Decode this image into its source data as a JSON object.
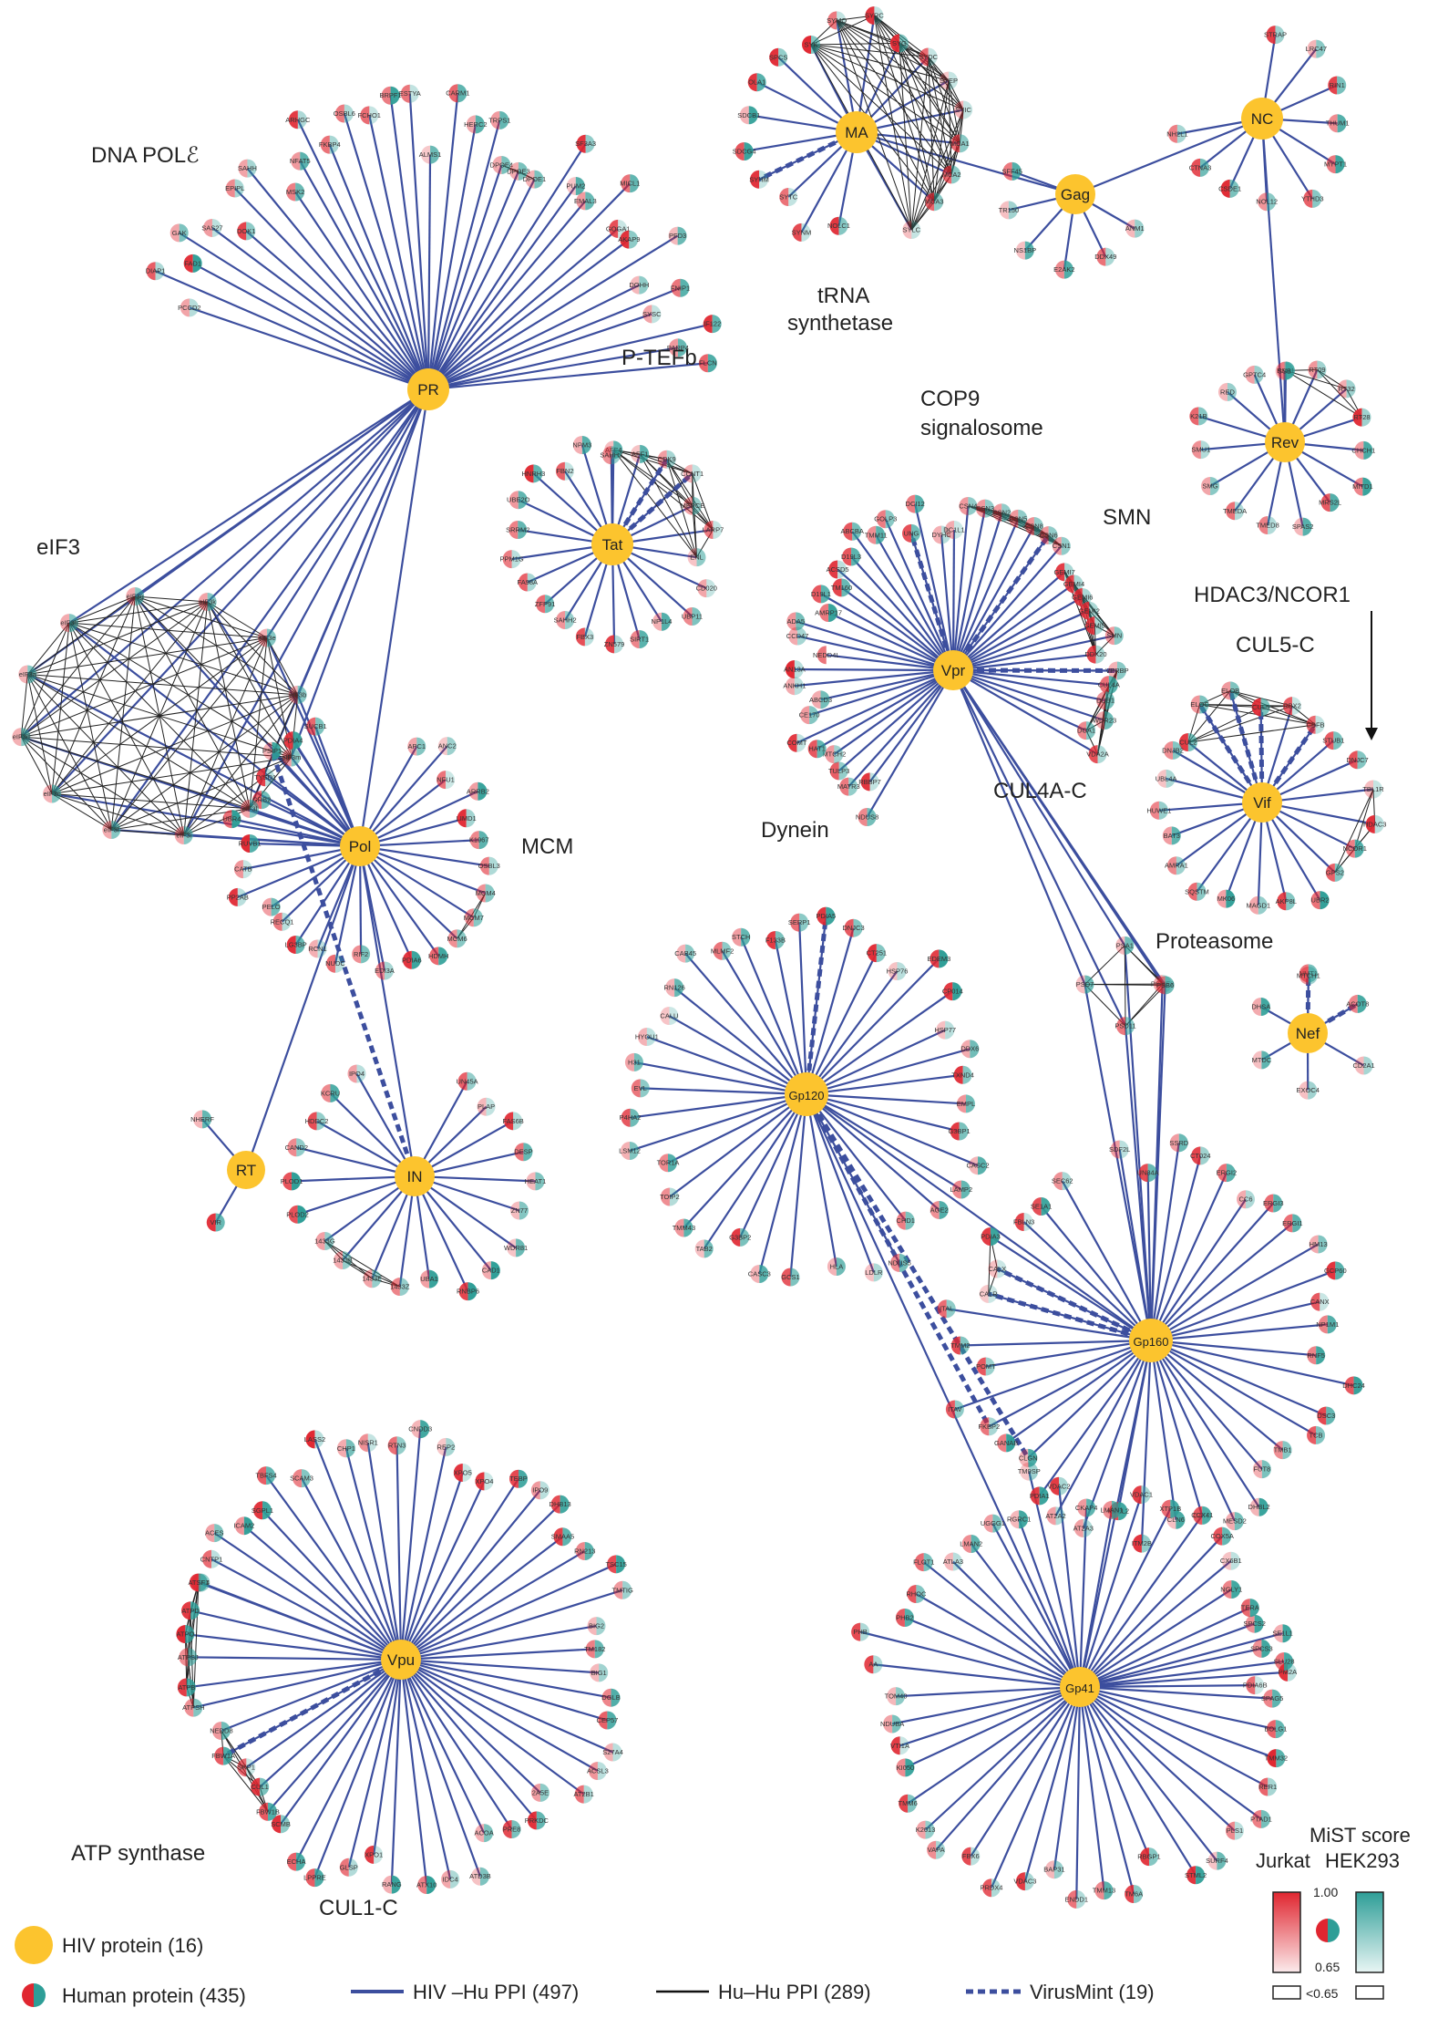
{
  "colors": {
    "hiv_node": "#FCC42E",
    "hiv_edge": "#3C4E9E",
    "hu_edge": "#222222",
    "virusmint_edge": "#3C4E9E",
    "jurkat_red": "#E02630",
    "hek_teal": "#2E9E97",
    "node_border": "#ffffff"
  },
  "hiv_nodes": [
    {
      "id": "PR",
      "label": "PR"
    },
    {
      "id": "Pol",
      "label": "Pol"
    },
    {
      "id": "RT",
      "label": "RT"
    },
    {
      "id": "IN",
      "label": "IN"
    },
    {
      "id": "MA",
      "label": "MA"
    },
    {
      "id": "Gag",
      "label": "Gag"
    },
    {
      "id": "NC",
      "label": "NC"
    },
    {
      "id": "Rev",
      "label": "Rev"
    },
    {
      "id": "Tat",
      "label": "Tat"
    },
    {
      "id": "Vpr",
      "label": "Vpr"
    },
    {
      "id": "Vif",
      "label": "Vif"
    },
    {
      "id": "Nef",
      "label": "Nef"
    },
    {
      "id": "Gp120",
      "label": "Gp120"
    },
    {
      "id": "Gp160",
      "label": "Gp160"
    },
    {
      "id": "Gp41",
      "label": "Gp41"
    },
    {
      "id": "Vpu",
      "label": "Vpu"
    }
  ],
  "clusters": [
    {
      "id": "dna-pol",
      "label": "DNA POLℰ"
    },
    {
      "id": "eif3",
      "label": "eIF3"
    },
    {
      "id": "mcm",
      "label": "MCM"
    },
    {
      "id": "ptefb",
      "label": "P-TEFb"
    },
    {
      "id": "trna1",
      "label": "tRNA"
    },
    {
      "id": "trna2",
      "label": "synthetase"
    },
    {
      "id": "cop9a",
      "label": "COP9"
    },
    {
      "id": "cop9b",
      "label": "signalosome"
    },
    {
      "id": "smn",
      "label": "SMN"
    },
    {
      "id": "hdac",
      "label": "HDAC3/NCOR1"
    },
    {
      "id": "cul5",
      "label": "CUL5-C"
    },
    {
      "id": "cul4a",
      "label": "CUL4A-C"
    },
    {
      "id": "dynein",
      "label": "Dynein"
    },
    {
      "id": "proteasome",
      "label": "Proteasome"
    },
    {
      "id": "atp",
      "label": "ATP synthase"
    },
    {
      "id": "cul1",
      "label": "CUL1-C"
    }
  ],
  "human_proteins": {
    "PR": [
      "PCCD2",
      "DIAP1",
      "FAD1",
      "GAK",
      "SAS27",
      "DOK1",
      "EPIPL",
      "SAHH",
      "MSK2",
      "NFAT5",
      "ARHGC",
      "FKBP4",
      "OSBL6",
      "FCHO1",
      "BRPF1",
      "ESTYA",
      "ALMS1",
      "CARM1",
      "HERC2",
      "TRPS1",
      "DPOE4",
      "DPOE3",
      "DPOE1",
      "SF3A3",
      "PUM2",
      "EMAL3",
      "MICL1",
      "GOGA1",
      "AKAP9",
      "PFD3",
      "DOHH",
      "FNIP1",
      "SYSC",
      "IF122",
      "PARP4",
      "FLCN"
    ],
    "eIF3": [
      "eIF3k",
      "eIF3e",
      "eIF3b",
      "eIF3m",
      "eIF3l",
      "eIF3i",
      "eIF3f",
      "eIF3c",
      "eIF3d",
      "eIF3a",
      "eIF3h",
      "eIF3g"
    ],
    "Pol": [
      "APC1",
      "ANC2",
      "NFU1",
      "ARRB2",
      "LIMD1",
      "K1967",
      "OSBL3",
      "MCM4",
      "MCM7",
      "MCM6",
      "HDMH",
      "PDIA6",
      "EDI3A",
      "RIF2",
      "NUDC",
      "RCN1",
      "LG3BP",
      "RECQ1",
      "PELO",
      "PP2AB",
      "CATB",
      "RUVB1",
      "UBR4",
      "GRB2",
      "TYSD1",
      "PSIP1",
      "PDIA4",
      "SUCB1"
    ],
    "RT": [
      "VIR",
      "NHERF"
    ],
    "IN": [
      "UN45A",
      "PLAP",
      "FAS6B",
      "DESP",
      "HEAT1",
      "ZN77",
      "WDR81",
      "CAD1",
      "RNBP6",
      "UBA1",
      "1433Z",
      "1433E",
      "1433B",
      "1433G",
      "PLOD2",
      "PLOD1",
      "CAND2",
      "HDDC2",
      "KCRU",
      "IPO4"
    ],
    "MA": [
      "NOLC1",
      "SYNM",
      "SYTC",
      "SYHM",
      "SDCG4",
      "SDCB1",
      "OLA1",
      "SPCS",
      "SYK",
      "SYMO",
      "SYRC",
      "SYG",
      "SYDC",
      "SYEP",
      "SYIC",
      "MCA1",
      "MCA2",
      "MCA3",
      "SYLC"
    ],
    "Gag": [
      "ANM1",
      "DDX49",
      "E2AK2",
      "NS1BP",
      "TR150",
      "SFF45"
    ],
    "NC": [
      "STRAP",
      "LRC47",
      "RIN1",
      "THUM1",
      "MYPT1",
      "YTHD3",
      "NOL12",
      "CSDE1",
      "CTNA3",
      "NH2L1"
    ],
    "Rev": [
      "RM11",
      "RT09",
      "RT32",
      "RT28",
      "CHCH1",
      "MITD1",
      "MRS2L",
      "SPAS2",
      "TMED8",
      "TMEDA",
      "SMG",
      "SMU1",
      "K21B",
      "RED",
      "GPTC4",
      "SSB"
    ],
    "Tat": [
      "AFF4",
      "AFF1",
      "CDK9",
      "CCNT1",
      "MEPCE",
      "LARP7",
      "ENL",
      "CD020",
      "UBP11",
      "NP1L4",
      "SIRT1",
      "ZN579",
      "FBX3",
      "SAHH2",
      "ZFP91",
      "FA98A",
      "PPM1G",
      "SRRM2",
      "UBE2O",
      "HNRH3",
      "FBN2",
      "NPM3",
      "SAHH3"
    ],
    "Vpr": [
      "NDUS8",
      "RBBP7",
      "MATR3",
      "TULP3",
      "MTCH2",
      "HAT1",
      "COMT",
      "CE170",
      "ABCD3",
      "ANKH1",
      "AN13A",
      "NEDD4L",
      "CCD47",
      "ADA5",
      "AMRP17",
      "D19L1",
      "TM160",
      "ACSD5",
      "D19L3",
      "ABCBA",
      "TMM11",
      "GOLP3",
      "UNG",
      "DCI12",
      "DYHC",
      "DC1L1",
      "CSN4",
      "CSN3",
      "CSN2",
      "CSN5",
      "CSN8",
      "CSN6",
      "CSN1",
      "GEMI7",
      "GEMI4",
      "GEMI6",
      "GEMI2",
      "GEMI5",
      "SMN",
      "DDX20",
      "VPRBP",
      "CUL4A",
      "DDB1",
      "WDR23",
      "DCA1",
      "VDA2A"
    ],
    "Vif": [
      "CUL2",
      "ELOC",
      "ELOB",
      "CUL5",
      "RBX2",
      "CBFB",
      "STUB1",
      "DNJC7",
      "TBL1R",
      "HDAC3",
      "NCOR1",
      "GPS2",
      "UBR2",
      "AKP8L",
      "MAGD1",
      "MK06",
      "SQSTM",
      "AMRA1",
      "BAT3",
      "HUWE1",
      "UBL4A",
      "DNJB2"
    ],
    "Nef": [
      "NMT1",
      "ACOT8",
      "CD2A1",
      "EXOC4",
      "MTDC",
      "DHSA",
      "MTCH1"
    ],
    "Proteasome": [
      "PSME3",
      "PSD11",
      "PSD7",
      "PSA1",
      "PSB6"
    ],
    "Gp120": [
      "GCS1",
      "CASC3",
      "G3BP2",
      "TAB2",
      "TMM43",
      "TOIP2",
      "TOR1A",
      "LSM12",
      "P4HA2",
      "EVL",
      "H31",
      "HYOU1",
      "CALU",
      "RN126",
      "CAB45",
      "MLMF2",
      "STCH",
      "F133B",
      "SERP1",
      "PDIA5",
      "DNJC3",
      "CT251",
      "HSP76",
      "EDEM3",
      "CP014",
      "HSP77",
      "DDX6",
      "TXND4",
      "EMPL",
      "G3BP1",
      "CASC2",
      "LAMP2",
      "AGE2",
      "CHD1",
      "NDUS5",
      "LDLR",
      "HLA"
    ],
    "Gp160": [
      "SDF2L",
      "UN84A",
      "SSRD",
      "CT024",
      "ERGI2",
      "CC6",
      "ERGI3",
      "ERGI1",
      "HM13",
      "GCP60",
      "CANX",
      "NP1M1",
      "RNF5",
      "DHC24",
      "DSC3",
      "TCB",
      "TMB1",
      "FUT8",
      "DHBL2",
      "MESD2",
      "CATD",
      "CLN6",
      "ITM2B",
      "KDEL2",
      "AT2A3",
      "AT2A2",
      "PDIA1",
      "CLGN",
      "GANAB",
      "FKBP2",
      "ITAV",
      "POMT",
      "TMM2",
      "ITAL",
      "CALR",
      "CALX",
      "PDIA3",
      "FBLN3",
      "SE1A1",
      "SEC62"
    ],
    "Gp41": [
      "SPCS2",
      "SPCS3",
      "PM2A",
      "SPAG5",
      "BOLG1",
      "TMM32",
      "RER1",
      "PTAD1",
      "PLS1",
      "SURF4",
      "STML2",
      "RBGP1",
      "TM6A",
      "TMM13",
      "ENDD1",
      "BAP31",
      "VDAC3",
      "PRDX4",
      "FBX6",
      "VAPA",
      "K2013",
      "TMM6",
      "KI050",
      "VTI1A",
      "NDUBA",
      "TOM40",
      "AA",
      "PHB",
      "PHB2",
      "RHOC",
      "FLOT1",
      "ATLA3",
      "LMAN2",
      "UGGG1",
      "RGRC1",
      "TM9SP",
      "VDAC2",
      "CKAP4",
      "LMAN1",
      "VDAC1",
      "XTP1B",
      "CCX41",
      "COX5A",
      "CX6B1",
      "NGLY1",
      "TERA",
      "SE1L1",
      "SLU28",
      "PDIA6B"
    ],
    "Vpu": [
      "RTN4",
      "CNTP1",
      "ACES",
      "ICAM2",
      "SGPL1",
      "TBFS4",
      "SCAM3",
      "LASS2",
      "CHP1",
      "NISR1",
      "RTN3",
      "CNDD3",
      "REP2",
      "XPO5",
      "XPO4",
      "TEBP",
      "IPO9",
      "DHB13",
      "SMAA5",
      "RN213",
      "TSC15",
      "TMTIG",
      "BIG2",
      "TM182",
      "BIG1",
      "DGLB",
      "CEP57",
      "S27A4",
      "ACSL3",
      "AT2B1",
      "2A5E",
      "PRKDC",
      "PRE8",
      "ACOA",
      "ATD3B",
      "IDC4",
      "ATX10",
      "RANG",
      "XPO1",
      "GLSP",
      "LPPRE",
      "ECHA",
      "SCMB",
      "FBW1B",
      "CUL1",
      "SKP1",
      "FBW1A",
      "NEDD8",
      "ATPSH",
      "ATPB",
      "ATPSJ",
      "ATPO",
      "ATPD",
      "ATSF1"
    ]
  },
  "legend": {
    "hiv_protein": "HIV protein (16)",
    "human_protein": "Human protein (435)",
    "hiv_hu": "HIV –Hu PPI (497)",
    "hu_hu": "Hu–Hu PPI (289)",
    "virusmint": "VirusMint (19)"
  },
  "scale": {
    "title": "MiST score",
    "col1": "Jurkat",
    "col2": "HEK293",
    "max": "1.00",
    "min": "0.65",
    "below": "<0.65"
  },
  "counts": {
    "hiv_proteins": 16,
    "human_proteins": 435,
    "hiv_hu_ppi": 497,
    "hu_hu_ppi": 289,
    "virusmint": 19
  }
}
